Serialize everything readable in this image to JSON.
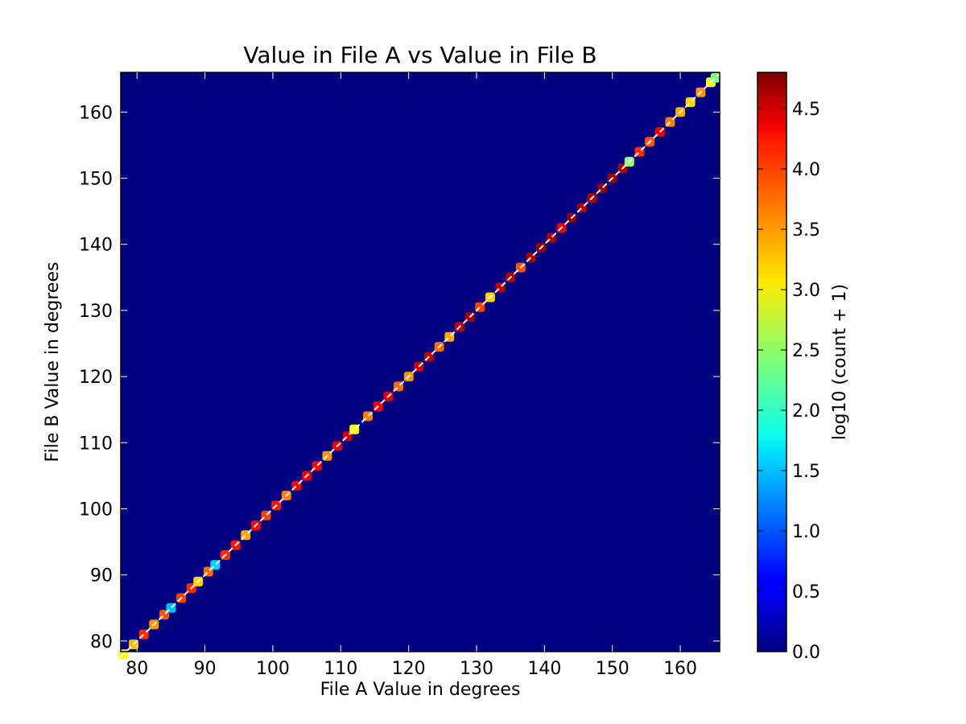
{
  "chart_data": {
    "type": "heatmap",
    "title": "Value in File A vs Value in File B",
    "xlabel": "File A Value in degrees",
    "ylabel": "File B Value in degrees",
    "xlim": [
      77.6,
      165.8
    ],
    "ylim": [
      78.4,
      166.0
    ],
    "xticks": [
      80,
      90,
      100,
      110,
      120,
      130,
      140,
      150,
      160
    ],
    "yticks": [
      80,
      90,
      100,
      110,
      120,
      130,
      140,
      150,
      160
    ],
    "xtick_labels": [
      "80",
      "90",
      "100",
      "110",
      "120",
      "130",
      "140",
      "150",
      "160"
    ],
    "ytick_labels": [
      "80",
      "90",
      "100",
      "110",
      "120",
      "130",
      "140",
      "150",
      "160"
    ],
    "background_value": 0.0,
    "colormap": "jet",
    "colorbar": {
      "label": "log10 (count + 1)",
      "range": [
        0.0,
        4.8
      ],
      "ticks": [
        0.0,
        0.5,
        1.0,
        1.5,
        2.0,
        2.5,
        3.0,
        3.5,
        4.0,
        4.5
      ],
      "tick_labels": [
        "0.0",
        "0.5",
        "1.0",
        "1.5",
        "2.0",
        "2.5",
        "3.0",
        "3.5",
        "4.0",
        "4.5"
      ]
    },
    "reference_line": {
      "from": [
        77.6,
        77.6
      ],
      "to": [
        165.8,
        165.8
      ],
      "color": "#ffffff"
    },
    "diagonal_cells": [
      {
        "v": 78,
        "c": 3.0
      },
      {
        "v": 79.5,
        "c": 3.3
      },
      {
        "v": 81,
        "c": 4.0
      },
      {
        "v": 82.5,
        "c": 3.5
      },
      {
        "v": 84,
        "c": 3.8
      },
      {
        "v": 85,
        "c": 1.5
      },
      {
        "v": 86.5,
        "c": 3.9
      },
      {
        "v": 88,
        "c": 4.0
      },
      {
        "v": 89,
        "c": 3.2
      },
      {
        "v": 90.5,
        "c": 3.7
      },
      {
        "v": 91.5,
        "c": 1.6
      },
      {
        "v": 93,
        "c": 4.0
      },
      {
        "v": 94.5,
        "c": 4.1
      },
      {
        "v": 96,
        "c": 3.4
      },
      {
        "v": 97.5,
        "c": 4.2
      },
      {
        "v": 99,
        "c": 3.9
      },
      {
        "v": 100.5,
        "c": 4.1
      },
      {
        "v": 102,
        "c": 3.6
      },
      {
        "v": 103.5,
        "c": 4.2
      },
      {
        "v": 105,
        "c": 4.3
      },
      {
        "v": 106.5,
        "c": 4.2
      },
      {
        "v": 108,
        "c": 3.5
      },
      {
        "v": 109.5,
        "c": 4.3
      },
      {
        "v": 111,
        "c": 4.4
      },
      {
        "v": 112,
        "c": 3.0
      },
      {
        "v": 114,
        "c": 3.6
      },
      {
        "v": 115.5,
        "c": 4.2
      },
      {
        "v": 117,
        "c": 4.3
      },
      {
        "v": 118.5,
        "c": 3.7
      },
      {
        "v": 120,
        "c": 3.5
      },
      {
        "v": 121.5,
        "c": 4.4
      },
      {
        "v": 123,
        "c": 4.5
      },
      {
        "v": 124.5,
        "c": 3.7
      },
      {
        "v": 126,
        "c": 3.4
      },
      {
        "v": 127.5,
        "c": 4.5
      },
      {
        "v": 129,
        "c": 4.6
      },
      {
        "v": 130.5,
        "c": 3.9
      },
      {
        "v": 132,
        "c": 3.2
      },
      {
        "v": 133.5,
        "c": 4.5
      },
      {
        "v": 135,
        "c": 4.6
      },
      {
        "v": 136.5,
        "c": 3.8
      },
      {
        "v": 138,
        "c": 4.6
      },
      {
        "v": 139.5,
        "c": 4.7
      },
      {
        "v": 141,
        "c": 4.6
      },
      {
        "v": 142.5,
        "c": 4.3
      },
      {
        "v": 144,
        "c": 4.7
      },
      {
        "v": 145.5,
        "c": 4.6
      },
      {
        "v": 147,
        "c": 4.6
      },
      {
        "v": 148.5,
        "c": 4.7
      },
      {
        "v": 150,
        "c": 4.7
      },
      {
        "v": 151.5,
        "c": 4.6
      },
      {
        "v": 152.5,
        "c": 2.5
      },
      {
        "v": 154,
        "c": 4.0
      },
      {
        "v": 155.5,
        "c": 3.8
      },
      {
        "v": 157,
        "c": 4.3
      },
      {
        "v": 158.5,
        "c": 3.6
      },
      {
        "v": 160,
        "c": 3.4
      },
      {
        "v": 161.5,
        "c": 3.2
      },
      {
        "v": 163,
        "c": 3.5
      },
      {
        "v": 164.5,
        "c": 2.9
      },
      {
        "v": 165.2,
        "c": 2.4
      }
    ]
  }
}
